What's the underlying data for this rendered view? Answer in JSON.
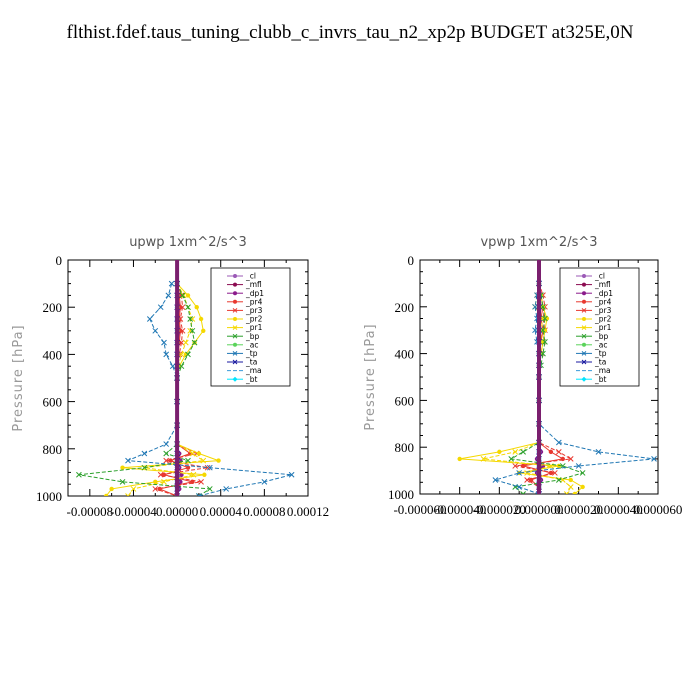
{
  "page": {
    "title": "flthist.fdef.taus_tuning_clubb_c_invrs_tau_n2_xp2p  BUDGET at325E,0N"
  },
  "chart_data": [
    {
      "type": "line",
      "title": "upwp   1xm^2/s^3",
      "ylabel": "Pressure [hPa]",
      "xlabel": "",
      "xlim": [
        -0.0001,
        0.00012
      ],
      "ylim": [
        1000,
        0
      ],
      "yticks": [
        0,
        200,
        400,
        600,
        800,
        1000
      ],
      "xticks": [
        -8e-05,
        -4e-05,
        0.0,
        4e-05,
        8e-05,
        0.00012
      ],
      "xtick_labels": [
        "-0.00008",
        "-0.00004",
        "0.00000",
        "0.00004",
        "0.00008",
        "0.00012"
      ],
      "grid": false,
      "legend_position": "top-right",
      "pressure": [
        100,
        150,
        200,
        250,
        300,
        350,
        400,
        450,
        500,
        600,
        700,
        780,
        820,
        850,
        880,
        910,
        940,
        970,
        1000
      ],
      "series": [
        {
          "name": "_cl",
          "color": "#9b59b6",
          "marker": "circle",
          "values": [
            0,
            0,
            0,
            0,
            0,
            0,
            0,
            0,
            0,
            0,
            0,
            0,
            0,
            0,
            0,
            0,
            0,
            0,
            0
          ]
        },
        {
          "name": "_mfl",
          "color": "#8b0a50",
          "marker": "circle",
          "values": [
            0,
            0,
            0,
            0,
            0,
            0,
            0,
            0,
            0,
            0,
            0,
            0,
            0,
            0,
            0,
            0,
            0,
            0,
            0
          ]
        },
        {
          "name": "_dp1",
          "color": "#8b1a8b",
          "marker": "circle",
          "values": [
            0,
            1e-06,
            2e-06,
            1e-06,
            2e-06,
            1e-06,
            1e-06,
            0,
            0,
            0,
            0,
            0,
            2e-06,
            3e-06,
            2e-06,
            4e-06,
            3e-06,
            2e-06,
            0
          ]
        },
        {
          "name": "_pr4",
          "color": "#e8382f",
          "marker": "circle",
          "values": [
            0,
            2e-06,
            3e-06,
            2e-06,
            3e-06,
            2e-06,
            1e-06,
            0,
            0,
            0,
            0,
            0,
            1.2e-05,
            -6e-06,
            1e-05,
            -1.2e-05,
            1.4e-05,
            -1.6e-05,
            0
          ]
        },
        {
          "name": "_pr3",
          "color": "#e8382f",
          "marker": "x",
          "values": [
            0,
            4e-06,
            5e-06,
            3e-06,
            5e-06,
            4e-06,
            2e-06,
            1e-06,
            0,
            0,
            0,
            0,
            1.8e-05,
            -1e-05,
            2.8e-05,
            -1.5e-05,
            2.2e-05,
            -2e-05,
            0
          ]
        },
        {
          "name": "_pr2",
          "color": "#f5d800",
          "marker": "circle",
          "values": [
            0,
            1e-05,
            1.8e-05,
            2.2e-05,
            2.4e-05,
            1.6e-05,
            8e-06,
            2e-06,
            0,
            0,
            0,
            0,
            2e-05,
            3.8e-05,
            -5e-05,
            2.5e-05,
            -2e-05,
            -6e-05,
            -6.5e-05
          ]
        },
        {
          "name": "_pr1",
          "color": "#f5d800",
          "marker": "x",
          "values": [
            0,
            6e-06,
            1e-05,
            1.4e-05,
            1.2e-05,
            8e-06,
            4e-06,
            1e-06,
            0,
            0,
            0,
            0,
            1.4e-05,
            2.4e-05,
            -3e-05,
            1.5e-05,
            -1.2e-05,
            -4e-05,
            -4.5e-05
          ]
        },
        {
          "name": "_bp",
          "color": "#2ca02c",
          "marker": "x",
          "values": [
            0,
            5e-06,
            1e-05,
            1.2e-05,
            1.4e-05,
            1.6e-05,
            1e-05,
            4e-06,
            0,
            0,
            0,
            0,
            -1e-05,
            1e-05,
            -3e-05,
            -9e-05,
            -5e-05,
            3e-05,
            2e-05
          ]
        },
        {
          "name": "_ac",
          "color": "#5ad35a",
          "marker": "circle",
          "values": [
            0,
            0,
            0,
            0,
            0,
            0,
            0,
            0,
            0,
            0,
            0,
            0,
            0,
            0,
            0,
            0,
            0,
            0,
            0
          ]
        },
        {
          "name": "_tp",
          "color": "#1f77b4",
          "marker": "x",
          "values": [
            -5e-06,
            -8e-06,
            -1.5e-05,
            -2.5e-05,
            -2e-05,
            -1.2e-05,
            -1e-05,
            -4e-06,
            0,
            0,
            0,
            -1e-05,
            -3e-05,
            -4.5e-05,
            3e-05,
            0.000105,
            8e-05,
            4.5e-05,
            2e-05
          ]
        },
        {
          "name": "_ta",
          "color": "#1a1aa0",
          "marker": "x",
          "values": [
            0,
            0,
            0,
            0,
            0,
            0,
            0,
            0,
            0,
            0,
            0,
            0,
            0,
            0,
            0,
            0,
            0,
            0,
            0
          ]
        },
        {
          "name": "_ma",
          "color": "#3a9ad9",
          "marker": "none",
          "values": [
            0,
            0,
            0,
            0,
            0,
            0,
            0,
            0,
            0,
            0,
            0,
            0,
            0,
            0,
            0,
            0,
            0,
            0,
            0
          ]
        },
        {
          "name": "_bt",
          "color": "#00e5ff",
          "marker": "diamond",
          "values": [
            0,
            0,
            0,
            0,
            0,
            0,
            0,
            0,
            0,
            0,
            0,
            0,
            0,
            0,
            0,
            0,
            0,
            0,
            0
          ]
        }
      ]
    },
    {
      "type": "line",
      "title": "vpwp   1xm^2/s^3",
      "ylabel": "Pressure [hPa]",
      "xlabel": "",
      "xlim": [
        -6e-05,
        6e-05
      ],
      "ylim": [
        1000,
        0
      ],
      "yticks": [
        0,
        200,
        400,
        600,
        800,
        1000
      ],
      "xticks": [
        -6e-05,
        -4e-05,
        -2e-05,
        0.0,
        2e-05,
        4e-05,
        6e-05
      ],
      "xtick_labels": [
        "-0.000060",
        "-0.000040",
        "-0.000020",
        "0.000000",
        "0.000020",
        "0.000040",
        "0.000060"
      ],
      "grid": false,
      "legend_position": "top-right",
      "pressure": [
        100,
        150,
        200,
        250,
        300,
        350,
        400,
        450,
        500,
        600,
        700,
        780,
        820,
        850,
        880,
        910,
        940,
        970,
        1000
      ],
      "series": [
        {
          "name": "_cl",
          "color": "#9b59b6",
          "marker": "circle",
          "values": [
            0,
            0,
            0,
            0,
            0,
            0,
            0,
            0,
            0,
            0,
            0,
            0,
            0,
            0,
            0,
            0,
            0,
            0,
            0
          ]
        },
        {
          "name": "_mfl",
          "color": "#8b0a50",
          "marker": "circle",
          "values": [
            0,
            0,
            0,
            0,
            0,
            0,
            0,
            0,
            0,
            0,
            0,
            0,
            0,
            0,
            0,
            0,
            0,
            0,
            0
          ]
        },
        {
          "name": "_dp1",
          "color": "#8b1a8b",
          "marker": "circle",
          "values": [
            0,
            5e-07,
            1e-06,
            5e-07,
            1e-06,
            5e-07,
            0,
            0,
            0,
            0,
            0,
            0,
            1e-06,
            -1e-06,
            2e-06,
            -1e-06,
            1e-06,
            0,
            0
          ]
        },
        {
          "name": "_pr4",
          "color": "#e8382f",
          "marker": "circle",
          "values": [
            0,
            1e-06,
            2e-06,
            1e-06,
            2e-06,
            1e-06,
            0,
            0,
            0,
            0,
            0,
            0,
            6e-06,
            1.2e-05,
            -8e-06,
            6e-06,
            -4e-06,
            0,
            0
          ]
        },
        {
          "name": "_pr3",
          "color": "#e8382f",
          "marker": "x",
          "values": [
            0,
            2e-06,
            3e-06,
            2e-06,
            3e-06,
            2e-06,
            1e-06,
            0,
            0,
            0,
            0,
            0,
            1e-05,
            1.6e-05,
            -1.2e-05,
            8e-06,
            -6e-06,
            0,
            0
          ]
        },
        {
          "name": "_pr2",
          "color": "#f5d800",
          "marker": "circle",
          "values": [
            0,
            1e-06,
            2e-06,
            4e-06,
            3e-06,
            2e-06,
            1e-06,
            0,
            0,
            0,
            0,
            0,
            -2e-05,
            -4e-05,
            1e-05,
            -1e-05,
            1.6e-05,
            2.2e-05,
            1.8e-05
          ]
        },
        {
          "name": "_pr1",
          "color": "#f5d800",
          "marker": "x",
          "values": [
            0,
            -1e-06,
            -2e-06,
            2e-06,
            1e-06,
            1e-06,
            0,
            0,
            0,
            0,
            0,
            0,
            -1.2e-05,
            -2.8e-05,
            6e-06,
            -6e-06,
            1.2e-05,
            1.6e-05,
            1.4e-05
          ]
        },
        {
          "name": "_bp",
          "color": "#2ca02c",
          "marker": "x",
          "values": [
            0,
            1e-06,
            2e-06,
            3e-06,
            2e-06,
            3e-06,
            2e-06,
            1e-06,
            0,
            0,
            0,
            0,
            -8e-06,
            -1.4e-05,
            1.2e-05,
            2.2e-05,
            1e-05,
            -1.2e-05,
            -8e-06
          ]
        },
        {
          "name": "_ac",
          "color": "#5ad35a",
          "marker": "circle",
          "values": [
            0,
            0,
            0,
            0,
            0,
            0,
            0,
            0,
            0,
            0,
            0,
            0,
            0,
            0,
            0,
            0,
            0,
            0,
            0
          ]
        },
        {
          "name": "_tp",
          "color": "#1f77b4",
          "marker": "x",
          "values": [
            0,
            -1e-06,
            -2e-06,
            -1e-06,
            -2e-06,
            -1e-06,
            0,
            0,
            0,
            0,
            0,
            1e-05,
            3e-05,
            5.8e-05,
            2e-05,
            -1e-05,
            -2.2e-05,
            -1e-05,
            0
          ]
        },
        {
          "name": "_ta",
          "color": "#1a1aa0",
          "marker": "x",
          "values": [
            0,
            0,
            0,
            0,
            0,
            0,
            0,
            0,
            0,
            0,
            0,
            0,
            0,
            0,
            0,
            0,
            0,
            0,
            0
          ]
        },
        {
          "name": "_ma",
          "color": "#3a9ad9",
          "marker": "none",
          "values": [
            0,
            0,
            0,
            0,
            0,
            0,
            0,
            0,
            0,
            0,
            0,
            0,
            0,
            0,
            0,
            0,
            0,
            0,
            0
          ]
        },
        {
          "name": "_bt",
          "color": "#00e5ff",
          "marker": "diamond",
          "values": [
            0,
            0,
            0,
            0,
            0,
            0,
            0,
            0,
            0,
            0,
            0,
            0,
            0,
            0,
            0,
            0,
            0,
            0,
            0
          ]
        }
      ]
    }
  ]
}
